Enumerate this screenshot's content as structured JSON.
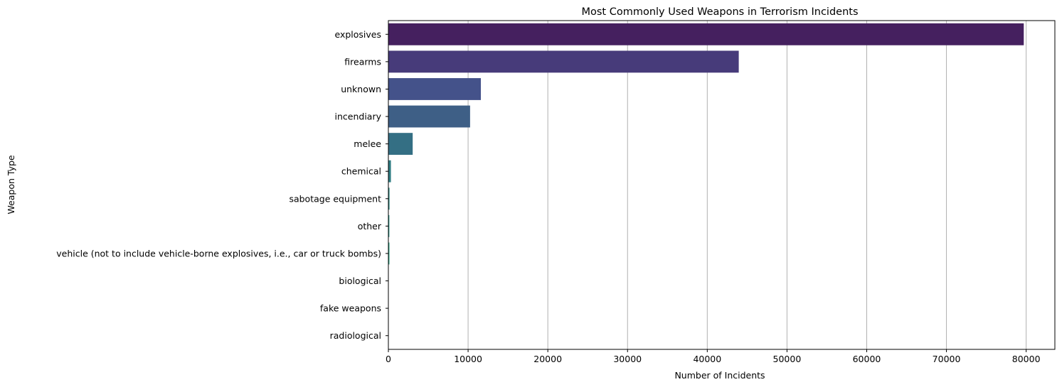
{
  "chart_data": {
    "type": "bar",
    "orientation": "horizontal",
    "title": "Most Commonly Used Weapons in Terrorism Incidents",
    "xlabel": "Number of Incidents",
    "ylabel": "Weapon Type",
    "xlim": [
      0,
      83600
    ],
    "xticks": [
      0,
      10000,
      20000,
      30000,
      40000,
      50000,
      60000,
      70000,
      80000
    ],
    "grid": "x",
    "categories": [
      "explosives",
      "firearms",
      "unknown",
      "incendiary",
      "melee",
      "chemical",
      "sabotage equipment",
      "other",
      "vehicle (not to include vehicle-borne explosives, i.e., car or truck bombs)",
      "biological",
      "fake weapons",
      "radiological"
    ],
    "values": [
      79700,
      43950,
      11600,
      10250,
      3050,
      320,
      140,
      120,
      130,
      35,
      33,
      14
    ],
    "colors": [
      "#45205f",
      "#473b7a",
      "#44528a",
      "#3e5f86",
      "#346f84",
      "#2f7d83",
      "#2a8a82",
      "#26988a",
      "#2aa585",
      "#3db77a",
      "#63c86a",
      "#95d54f"
    ]
  }
}
